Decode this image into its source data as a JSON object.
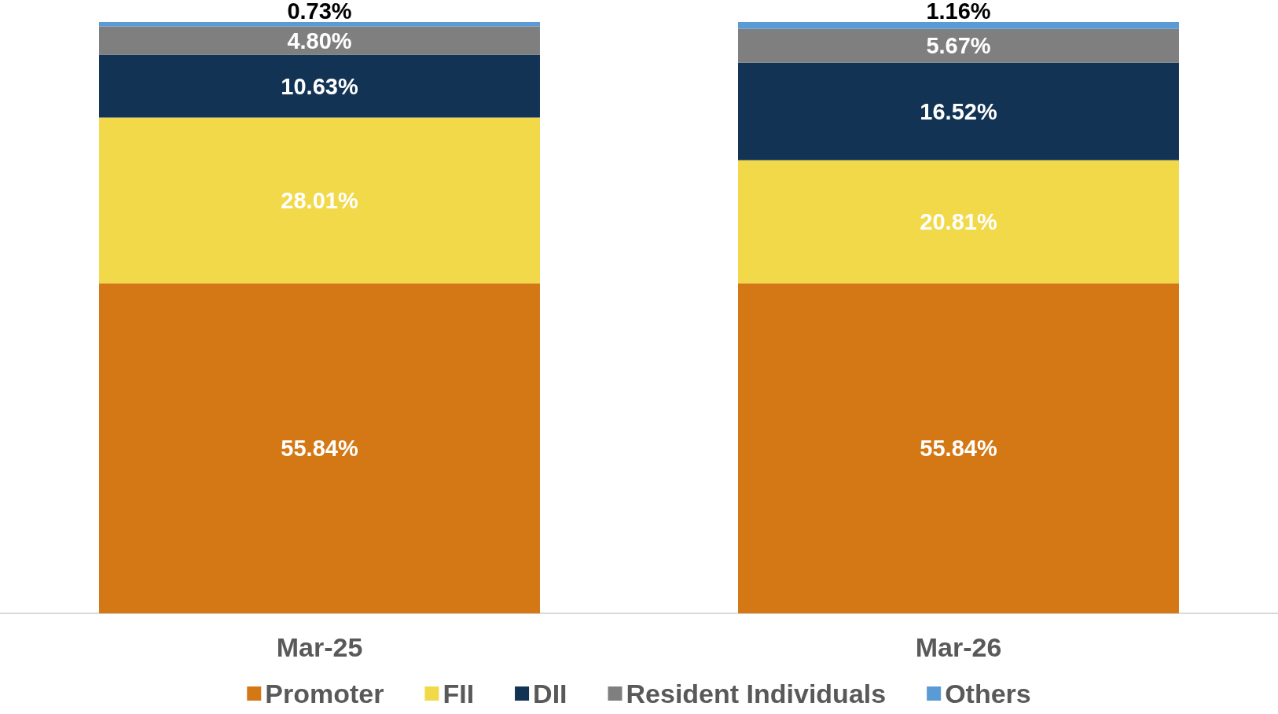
{
  "chart_data": {
    "type": "bar",
    "stacked": true,
    "categories": [
      "Mar-25",
      "Mar-26"
    ],
    "legend": "bottom",
    "series": [
      {
        "name": "Promoter",
        "color": "#d47815",
        "values": [
          55.84,
          55.84
        ],
        "value_labels": [
          "55.84%",
          "55.84%"
        ]
      },
      {
        "name": "FII",
        "color": "#f2d94a",
        "values": [
          28.01,
          20.81
        ],
        "value_labels": [
          "28.01%",
          "20.81%"
        ]
      },
      {
        "name": "DII",
        "color": "#123354",
        "values": [
          10.63,
          16.52
        ],
        "value_labels": [
          "10.63%",
          "16.52%"
        ]
      },
      {
        "name": "Resident Individuals",
        "color": "#7f7f7f",
        "values": [
          4.8,
          5.67
        ],
        "value_labels": [
          "4.80%",
          "5.67%"
        ]
      },
      {
        "name": "Others",
        "color": "#5b9bd5",
        "values": [
          0.73,
          1.16
        ],
        "value_labels": [
          "0.73%",
          "1.16%"
        ]
      }
    ]
  }
}
